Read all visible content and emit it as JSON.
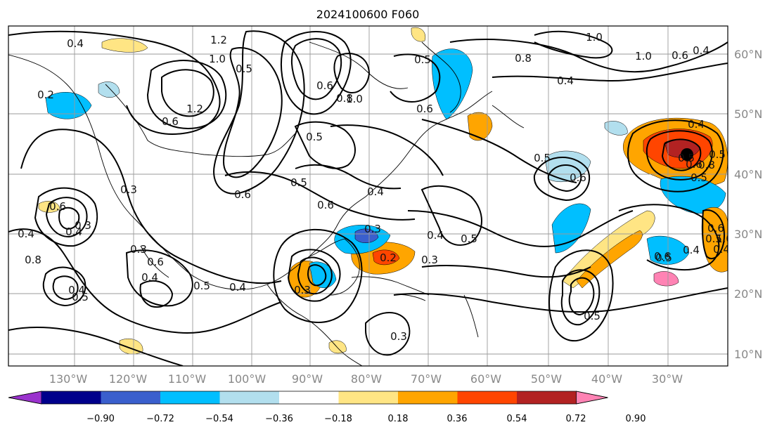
{
  "title": "2024100600 F060",
  "lon_ticks": [
    "130°W",
    "120°W",
    "110°W",
    "100°W",
    "90°W",
    "80°W",
    "70°W",
    "60°W",
    "50°W",
    "40°W",
    "30°W"
  ],
  "lat_ticks": [
    "60°N",
    "50°N",
    "40°N",
    "30°N",
    "20°N",
    "10°N"
  ],
  "colorbar": {
    "tick_labels": [
      "−0.90",
      "−0.72",
      "−0.54",
      "−0.36",
      "−0.18",
      "0.18",
      "0.36",
      "0.54",
      "0.72",
      "0.90"
    ],
    "colors": [
      "#9a32cd",
      "#00008b",
      "#3a5fcd",
      "#00bfff",
      "#b2dfee",
      "#ffffff",
      "#ffe584",
      "#ffa500",
      "#ff4500",
      "#b22222",
      "#ff83b4"
    ]
  },
  "contour_labels": [
    "0.4",
    "1.2",
    "1.0",
    "0.5",
    "0.6",
    "0.8",
    "1.2",
    "0.6",
    "1.0",
    "0.8",
    "0.6",
    "1.0",
    "0.5",
    "1.0",
    "0.4",
    "0.6",
    "0.4",
    "0.5",
    "0.5",
    "0.6",
    "0.6",
    "0.4",
    "0.3",
    "0.6",
    "0.4",
    "0.3",
    "0.4",
    "0.8",
    "0.4",
    "0.5",
    "0.4",
    "0.6",
    "0.5",
    "0.4",
    "0.3",
    "0.3",
    "0.2",
    "0.3",
    "0.5",
    "0.4",
    "0.5",
    "0.6",
    "0.6",
    "0.5",
    "0.4",
    "0.5",
    "0.6",
    "0.4",
    "0.5",
    "0.3",
    "0.2",
    "0.3",
    "0.4",
    "0.5",
    "0.5",
    "0.8",
    "1.0",
    "0.6",
    "0.5",
    "0.4"
  ]
}
